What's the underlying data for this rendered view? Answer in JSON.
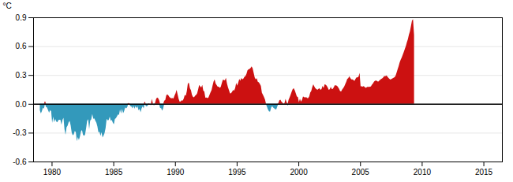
{
  "chart_data": {
    "type": "area",
    "ylabel": "°C",
    "xlim": [
      1978.5,
      2016.5
    ],
    "ylim": [
      -0.6,
      0.9
    ],
    "xticks": [
      1980,
      1985,
      1990,
      1995,
      2000,
      2005,
      2010,
      2015
    ],
    "yticks": [
      -0.6,
      -0.3,
      {
        "value": 0.0,
        "label": "0.0"
      },
      0.3,
      0.6,
      0.9
    ],
    "grid": true,
    "color": {
      "positive": "#cc1111",
      "negative": "#3399bb"
    },
    "x": [
      1979.0416666666667,
      1979.125,
      1979.2083333333333,
      1979.2916666666667,
      1979.375,
      1979.4583333333333,
      1979.5416666666667,
      1979.625,
      1979.7083333333333,
      1979.7916666666667,
      1979.875,
      1979.9583333333333,
      1980.0416666666667,
      1980.125,
      1980.2083333333333,
      1980.2916666666667,
      1980.375,
      1980.4583333333333,
      1980.5416666666667,
      1980.625,
      1980.7083333333333,
      1980.7916666666667,
      1980.875,
      1980.9583333333333,
      1981.0416666666667,
      1981.125,
      1981.2083333333333,
      1981.2916666666667,
      1981.375,
      1981.4583333333333,
      1981.5416666666667,
      1981.625,
      1981.7083333333333,
      1981.7916666666667,
      1981.875,
      1981.9583333333333,
      1982.0416666666667,
      1982.125,
      1982.2083333333333,
      1982.2916666666667,
      1982.375,
      1982.4583333333333,
      1982.5416666666667,
      1982.625,
      1982.7083333333333,
      1982.7916666666667,
      1982.875,
      1982.9583333333333,
      1983.0416666666667,
      1983.125,
      1983.2083333333333,
      1983.2916666666667,
      1983.375,
      1983.4583333333333,
      1983.5416666666667,
      1983.625,
      1983.7083333333333,
      1983.7916666666667,
      1983.875,
      1983.9583333333333,
      1984.0416666666667,
      1984.125,
      1984.2083333333333,
      1984.2916666666667,
      1984.375,
      1984.4583333333333,
      1984.5416666666667,
      1984.625,
      1984.7083333333333,
      1984.7916666666667,
      1984.875,
      1984.9583333333333,
      1985.0416666666667,
      1985.125,
      1985.2083333333333,
      1985.2916666666667,
      1985.375,
      1985.4583333333333,
      1985.5416666666667,
      1985.625,
      1985.7083333333333,
      1985.7916666666667,
      1985.875,
      1985.9583333333333,
      1986.0416666666667,
      1986.125,
      1986.2083333333333,
      1986.2916666666667,
      1986.375,
      1986.4583333333333,
      1986.5416666666667,
      1986.625,
      1986.7083333333333,
      1986.7916666666667,
      1986.875,
      1986.9583333333333,
      1987.0416666666667,
      1987.125,
      1987.2083333333333,
      1987.2916666666667,
      1987.375,
      1987.4583333333333,
      1987.5416666666667,
      1987.625,
      1987.7083333333333,
      1987.7916666666667,
      1987.875,
      1987.9583333333333,
      1988.0416666666667,
      1988.125,
      1988.2083333333333,
      1988.2916666666667,
      1988.375,
      1988.4583333333333,
      1988.5416666666667,
      1988.625,
      1988.7083333333333,
      1988.7916666666667,
      1988.875,
      1988.9583333333333,
      1989.0416666666667,
      1989.125,
      1989.2083333333333,
      1989.2916666666667,
      1989.375,
      1989.4583333333333,
      1989.5416666666667,
      1989.625,
      1989.7083333333333,
      1989.7916666666667,
      1989.875,
      1989.9583333333333,
      1990.0416666666667,
      1990.125,
      1990.2083333333333,
      1990.2916666666667,
      1990.375,
      1990.4583333333333,
      1990.5416666666667,
      1990.625,
      1990.7083333333333,
      1990.7916666666667,
      1990.875,
      1990.9583333333333,
      1991.0416666666667,
      1991.125,
      1991.2083333333333,
      1991.2916666666667,
      1991.375,
      1991.4583333333333,
      1991.5416666666667,
      1991.625,
      1991.7083333333333,
      1991.7916666666667,
      1991.875,
      1991.9583333333333,
      1992.0416666666667,
      1992.125,
      1992.2083333333333,
      1992.2916666666667,
      1992.375,
      1992.4583333333333,
      1992.5416666666667,
      1992.625,
      1992.7083333333333,
      1992.7916666666667,
      1992.875,
      1992.9583333333333,
      1993.0416666666667,
      1993.125,
      1993.2083333333333,
      1993.2916666666667,
      1993.375,
      1993.4583333333333,
      1993.5416666666667,
      1993.625,
      1993.7083333333333,
      1993.7916666666667,
      1993.875,
      1993.9583333333333,
      1994.0416666666667,
      1994.125,
      1994.2083333333333,
      1994.2916666666667,
      1994.375,
      1994.4583333333333,
      1994.5416666666667,
      1994.625,
      1994.7083333333333,
      1994.7916666666667,
      1994.875,
      1994.9583333333333,
      1995.0416666666667,
      1995.125,
      1995.2083333333333,
      1995.2916666666667,
      1995.375,
      1995.4583333333333,
      1995.5416666666667,
      1995.625,
      1995.7083333333333,
      1995.7916666666667,
      1995.875,
      1995.9583333333333,
      1996.0416666666667,
      1996.125,
      1996.2083333333333,
      1996.2916666666667,
      1996.375,
      1996.4583333333333,
      1996.5416666666667,
      1996.625,
      1996.7083333333333,
      1996.7916666666667,
      1996.875,
      1996.9583333333333,
      1997.0416666666667,
      1997.125,
      1997.2083333333333,
      1997.2916666666667,
      1997.375,
      1997.4583333333333,
      1997.5416666666667,
      1997.625,
      1997.7083333333333,
      1997.7916666666667,
      1997.875,
      1997.9583333333333,
      1998.0416666666667,
      1998.125,
      1998.2083333333333,
      1998.2916666666667,
      1998.375,
      1998.4583333333333,
      1998.5416666666667,
      1998.625,
      1998.7083333333333,
      1998.7916666666667,
      1998.875,
      1998.9583333333333,
      1999.0416666666667,
      1999.125,
      1999.2083333333333,
      1999.2916666666667,
      1999.375,
      1999.4583333333333,
      1999.5416666666667,
      1999.625,
      1999.7083333333333,
      1999.7916666666667,
      1999.875,
      1999.9583333333333,
      2000.0416666666667,
      2000.125,
      2000.2083333333333,
      2000.2916666666667,
      2000.375,
      2000.4583333333333,
      2000.5416666666667,
      2000.625,
      2000.7083333333333,
      2000.7916666666667,
      2000.875,
      2000.9583333333333,
      2001.0416666666667,
      2001.125,
      2001.2083333333333,
      2001.2916666666667,
      2001.375,
      2001.4583333333333,
      2001.5416666666667,
      2001.625,
      2001.7083333333333,
      2001.7916666666667,
      2001.875,
      2001.9583333333333,
      2002.0416666666667,
      2002.125,
      2002.2083333333333,
      2002.2916666666667,
      2002.375,
      2002.4583333333333,
      2002.5416666666667,
      2002.625,
      2002.7083333333333,
      2002.7916666666667,
      2002.875,
      2002.9583333333333,
      2003.0416666666667,
      2003.125,
      2003.2083333333333,
      2003.2916666666667,
      2003.375,
      2003.4583333333333,
      2003.5416666666667,
      2003.625,
      2003.7083333333333,
      2003.7916666666667,
      2003.875,
      2003.9583333333333,
      2004.0416666666667,
      2004.125,
      2004.2083333333333,
      2004.2916666666667,
      2004.375,
      2004.4583333333333,
      2004.5416666666667,
      2004.625,
      2004.7083333333333,
      2004.7916666666667,
      2004.875,
      2004.9583333333333,
      2005.0416666666667,
      2005.125,
      2005.2083333333333,
      2005.2916666666667,
      2005.375,
      2005.4583333333333,
      2005.5416666666667,
      2005.625,
      2005.7083333333333,
      2005.7916666666667,
      2005.875,
      2005.9583333333333,
      2006.0416666666667,
      2006.125,
      2006.2083333333333,
      2006.2916666666667,
      2006.375,
      2006.4583333333333,
      2006.5416666666667,
      2006.625,
      2006.7083333333333,
      2006.7916666666667,
      2006.875,
      2006.9583333333333,
      2007.0416666666667,
      2007.125,
      2007.2083333333333,
      2007.2916666666667,
      2007.375,
      2007.4583333333333,
      2007.5416666666667,
      2007.625,
      2007.7083333333333,
      2007.7916666666667,
      2007.875,
      2007.9583333333333,
      2008.0416666666667,
      2008.125,
      2008.2083333333333,
      2008.2916666666667,
      2008.375,
      2008.4583333333333,
      2008.5416666666667,
      2008.625,
      2008.7083333333333,
      2008.7916666666667,
      2008.875,
      2008.9583333333333,
      2009.0416666666667,
      2009.125,
      2009.2083333333333,
      2009.2916666666667,
      2009.375
    ],
    "values": [
      -0.068,
      -0.101,
      -0.076,
      -0.038,
      -0.05,
      0.03,
      -0.032,
      -0.038,
      -0.066,
      -0.091,
      -0.065,
      -0.077,
      -0.199,
      -0.133,
      -0.193,
      -0.158,
      -0.183,
      -0.193,
      -0.169,
      -0.166,
      -0.165,
      -0.217,
      -0.168,
      -0.145,
      -0.264,
      -0.322,
      -0.243,
      -0.228,
      -0.193,
      -0.178,
      -0.225,
      -0.299,
      -0.327,
      -0.318,
      -0.283,
      -0.294,
      -0.389,
      -0.346,
      -0.376,
      -0.34,
      -0.286,
      -0.273,
      -0.321,
      -0.333,
      -0.319,
      -0.256,
      -0.177,
      -0.159,
      -0.264,
      -0.173,
      -0.162,
      -0.107,
      -0.155,
      -0.152,
      -0.175,
      -0.196,
      -0.235,
      -0.297,
      -0.29,
      -0.333,
      -0.294,
      -0.35,
      -0.329,
      -0.302,
      -0.249,
      -0.155,
      -0.172,
      -0.168,
      -0.133,
      -0.175,
      -0.168,
      -0.197,
      -0.213,
      -0.157,
      -0.149,
      -0.131,
      -0.111,
      -0.114,
      -0.059,
      -0.1,
      -0.053,
      -0.097,
      -0.075,
      -0.037,
      -0.046,
      -0.034,
      0.008,
      0.005,
      -0.025,
      -0.026,
      -0.047,
      -0.021,
      -0.051,
      -0.023,
      -0.045,
      -0.025,
      -0.067,
      -0.052,
      -0.087,
      -0.046,
      -0.027,
      -0.047,
      0.026,
      -0.021,
      -0.028,
      -0.016,
      0.006,
      -0.008,
      -0.013,
      0.051,
      0.001,
      -0.018,
      0.007,
      0.048,
      0.066,
      0.059,
      0.04,
      -0.042,
      -0.044,
      -0.071,
      -0.047,
      0.034,
      0.039,
      0.088,
      0.099,
      0.088,
      0.072,
      0.062,
      0.057,
      0.059,
      0.056,
      0.087,
      0.108,
      0.145,
      0.099,
      0.051,
      0.023,
      0.026,
      0.038,
      0.033,
      0.056,
      0.093,
      0.084,
      0.134,
      0.213,
      0.218,
      0.162,
      0.142,
      0.093,
      0.072,
      0.069,
      0.084,
      0.093,
      0.11,
      0.15,
      0.197,
      0.181,
      0.171,
      0.198,
      0.137,
      0.127,
      0.063,
      0.067,
      0.059,
      0.065,
      0.092,
      0.119,
      0.141,
      0.188,
      0.232,
      0.254,
      0.211,
      0.196,
      0.178,
      0.178,
      0.166,
      0.176,
      0.216,
      0.25,
      0.248,
      0.244,
      0.271,
      0.213,
      0.173,
      0.141,
      0.11,
      0.111,
      0.126,
      0.144,
      0.138,
      0.165,
      0.218,
      0.188,
      0.221,
      0.258,
      0.241,
      0.269,
      0.255,
      0.263,
      0.282,
      0.29,
      0.311,
      0.348,
      0.36,
      0.364,
      0.374,
      0.389,
      0.37,
      0.323,
      0.275,
      0.254,
      0.267,
      0.229,
      0.224,
      0.208,
      0.186,
      0.115,
      0.094,
      0.072,
      0.045,
      -0.003,
      -0.033,
      -0.061,
      -0.079,
      -0.08,
      -0.038,
      -0.024,
      -0.038,
      -0.047,
      -0.057,
      -0.057,
      -0.026,
      0.008,
      0.037,
      0.043,
      0.022,
      0.013,
      -0.002,
      0.008,
      0.052,
      0.017,
      -0.019,
      0.044,
      0.069,
      0.097,
      0.128,
      0.155,
      0.163,
      0.139,
      0.109,
      0.077,
      0.073,
      0.016,
      0.054,
      0.022,
      0.041,
      0.077,
      0.073,
      0.063,
      0.072,
      0.059,
      0.059,
      0.076,
      0.118,
      0.134,
      0.175,
      0.203,
      0.181,
      0.162,
      0.155,
      0.145,
      0.156,
      0.163,
      0.145,
      0.154,
      0.186,
      0.165,
      0.203,
      0.199,
      0.188,
      0.171,
      0.145,
      0.153,
      0.176,
      0.155,
      0.157,
      0.175,
      0.196,
      0.192,
      0.188,
      0.174,
      0.159,
      0.133,
      0.127,
      0.147,
      0.162,
      0.178,
      0.203,
      0.228,
      0.259,
      0.267,
      0.288,
      0.269,
      0.254,
      0.255,
      0.248,
      0.239,
      0.258,
      0.274,
      0.275,
      0.283,
      0.322,
      0.183,
      0.182,
      0.179,
      0.185,
      0.175,
      0.166,
      0.172,
      0.178,
      0.174,
      0.178,
      0.181,
      0.2,
      0.212,
      0.23,
      0.241,
      0.243,
      0.238,
      0.23,
      0.241,
      0.251,
      0.259,
      0.265,
      0.274,
      0.29,
      0.288,
      0.295,
      0.285,
      0.271,
      0.261,
      0.253,
      0.258,
      0.265,
      0.27,
      0.278,
      0.291,
      0.325,
      0.358,
      0.392,
      0.43,
      0.46,
      0.481,
      0.51,
      0.54,
      0.57,
      0.6,
      0.64,
      0.673,
      0.719,
      0.754,
      0.81,
      0.867,
      0.88,
      0.717
    ]
  }
}
